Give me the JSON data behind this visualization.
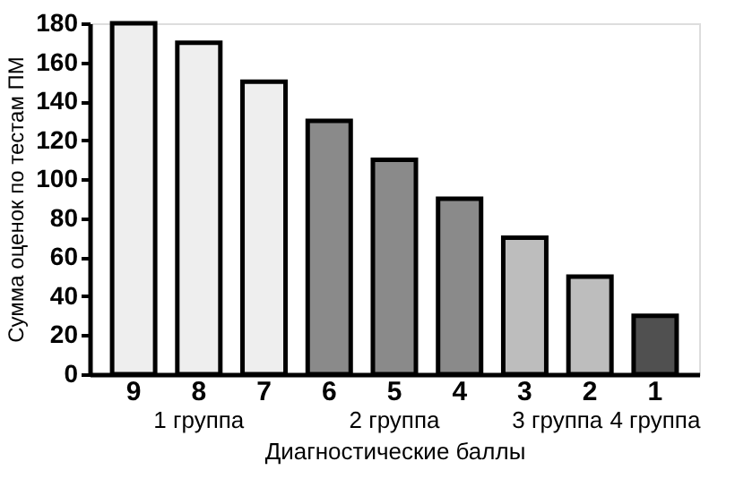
{
  "chart_data": {
    "type": "bar",
    "categories": [
      "9",
      "8",
      "7",
      "6",
      "5",
      "4",
      "3",
      "2",
      "1"
    ],
    "values": [
      180,
      170,
      150,
      130,
      110,
      90,
      70,
      50,
      30
    ],
    "colors": [
      "#eeeeee",
      "#eeeeee",
      "#eeeeee",
      "#8a8a8a",
      "#8a8a8a",
      "#8a8a8a",
      "#bdbdbd",
      "#bdbdbd",
      "#505050"
    ],
    "ylim": [
      0,
      180
    ],
    "yticks": [
      0,
      20,
      40,
      60,
      80,
      100,
      120,
      140,
      160,
      180
    ],
    "xlabel": "Диагностические баллы",
    "ylabel": "Сумма оценок по тестам ПМ",
    "annotations": [
      "1 группа",
      "2 группа",
      "3 группа",
      "4 группа"
    ],
    "grid": false
  }
}
